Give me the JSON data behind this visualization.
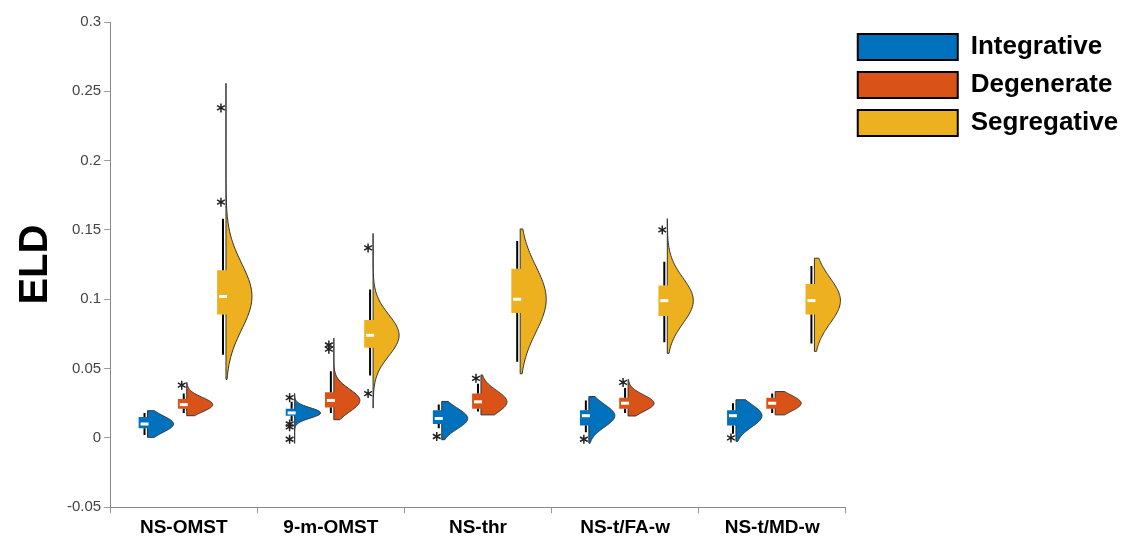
{
  "chart_data": {
    "type": "box",
    "ylabel": "ELD",
    "categories": [
      "NS-OMST",
      "9-m-OMST",
      "NS-thr",
      "NS-t/FA-w",
      "NS-t/MD-w"
    ],
    "ylim": [
      -0.05,
      0.3
    ],
    "yticks": [
      -0.05,
      0,
      0.05,
      0.1,
      0.15,
      0.2,
      0.25,
      0.3
    ],
    "grid": false,
    "legend": "right",
    "series": [
      {
        "name": "Integrative",
        "color": "#0072bd",
        "boxes": [
          {
            "low": 0.002,
            "q1": 0.007,
            "median": 0.01,
            "q3": 0.015,
            "high": 0.018
          },
          {
            "low": 0.012,
            "q1": 0.016,
            "median": 0.018,
            "q3": 0.021,
            "high": 0.026,
            "outliers": [
              0.029,
              0.01,
              0.008,
              -0.001
            ]
          },
          {
            "low": 0.007,
            "q1": 0.01,
            "median": 0.014,
            "q3": 0.02,
            "high": 0.024,
            "outliers": [
              0.001
            ]
          },
          {
            "low": 0.004,
            "q1": 0.009,
            "median": 0.016,
            "q3": 0.02,
            "high": 0.027,
            "outliers": [
              -0.001
            ]
          },
          {
            "low": 0.003,
            "q1": 0.009,
            "median": 0.016,
            "q3": 0.02,
            "high": 0.025,
            "outliers": [
              0
            ]
          }
        ]
      },
      {
        "name": "Degenerate",
        "color": "#d95319",
        "boxes": [
          {
            "low": 0.018,
            "q1": 0.021,
            "median": 0.024,
            "q3": 0.028,
            "high": 0.032,
            "outliers": [
              0.038
            ]
          },
          {
            "low": 0.018,
            "q1": 0.022,
            "median": 0.027,
            "q3": 0.033,
            "high": 0.048,
            "outliers": [
              0.064,
              0.067
            ]
          },
          {
            "low": 0.019,
            "q1": 0.021,
            "median": 0.026,
            "q3": 0.032,
            "high": 0.039,
            "outliers": [
              0.043
            ]
          },
          {
            "low": 0.018,
            "q1": 0.021,
            "median": 0.025,
            "q3": 0.029,
            "high": 0.036,
            "outliers": [
              0.04
            ]
          },
          {
            "low": 0.018,
            "q1": 0.021,
            "median": 0.025,
            "q3": 0.029,
            "high": 0.032
          }
        ]
      },
      {
        "name": "Segregative",
        "color": "#edb120",
        "boxes": [
          {
            "low": 0.06,
            "q1": 0.089,
            "median": 0.102,
            "q3": 0.121,
            "high": 0.158,
            "outliers": [
              0.17,
              0.238
            ]
          },
          {
            "low": 0.045,
            "q1": 0.065,
            "median": 0.074,
            "q3": 0.085,
            "high": 0.107,
            "outliers": [
              0.137,
              0.032
            ]
          },
          {
            "low": 0.055,
            "q1": 0.09,
            "median": 0.1,
            "q3": 0.122,
            "high": 0.142
          },
          {
            "low": 0.069,
            "q1": 0.088,
            "median": 0.099,
            "q3": 0.11,
            "high": 0.127,
            "outliers": [
              0.15
            ]
          },
          {
            "low": 0.068,
            "q1": 0.089,
            "median": 0.099,
            "q3": 0.111,
            "high": 0.124
          }
        ]
      }
    ]
  }
}
